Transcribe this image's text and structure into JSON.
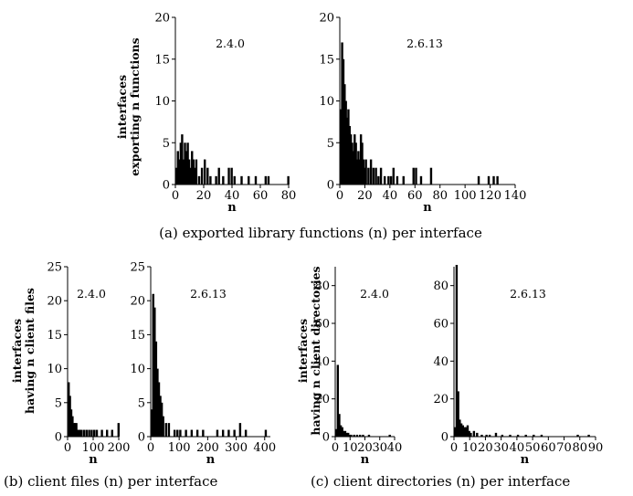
{
  "captions": [
    "(a) exported library functions (n) per interface",
    "(b) client files (n) per interface",
    "(c) client directories (n) per interface"
  ],
  "ylabels": {
    "a": [
      "interfaces",
      "exporting n functions"
    ],
    "b": [
      "interfaces",
      "having n client files"
    ],
    "c": [
      "interfaces",
      "having n client directories"
    ]
  },
  "chart_data": [
    {
      "type": "bar",
      "group": "a",
      "version": "2.4.0",
      "xlabel": "n",
      "xlim": [
        0,
        80
      ],
      "ylim": [
        0,
        20
      ],
      "xticks": [
        "0",
        "20",
        "40",
        "60",
        "80"
      ],
      "yticks": [
        "0",
        "5",
        "10",
        "15",
        "20"
      ],
      "x": [
        0,
        1,
        2,
        3,
        4,
        5,
        6,
        7,
        8,
        9,
        10,
        11,
        12,
        13,
        14,
        16,
        18,
        20,
        22,
        24,
        28,
        30,
        33,
        37,
        39,
        41,
        46,
        51,
        56,
        63,
        65,
        79
      ],
      "values": [
        2,
        4,
        3,
        5,
        6,
        3,
        5,
        4,
        5,
        3,
        2,
        4,
        3,
        2,
        3,
        1,
        2,
        3,
        2,
        1,
        1,
        2,
        1,
        2,
        2,
        1,
        1,
        1,
        1,
        1,
        1,
        1
      ]
    },
    {
      "type": "bar",
      "group": "a",
      "version": "2.6.13",
      "xlabel": "n",
      "xlim": [
        0,
        140
      ],
      "ylim": [
        0,
        20
      ],
      "xticks": [
        "0",
        "20",
        "40",
        "60",
        "80",
        "100",
        "120",
        "140"
      ],
      "yticks": [
        "0",
        "5",
        "10",
        "15",
        "20"
      ],
      "x": [
        0,
        1,
        2,
        3,
        4,
        5,
        6,
        7,
        8,
        9,
        10,
        11,
        12,
        13,
        14,
        15,
        16,
        17,
        18,
        19,
        20,
        22,
        24,
        26,
        28,
        30,
        32,
        35,
        38,
        40,
        42,
        45,
        50,
        58,
        60,
        64,
        72,
        110,
        118,
        122,
        125
      ],
      "values": [
        9,
        17,
        15,
        12,
        10,
        8,
        9,
        7,
        6,
        5,
        4,
        6,
        5,
        3,
        4,
        3,
        6,
        5,
        3,
        2,
        3,
        2,
        3,
        2,
        2,
        1,
        2,
        1,
        1,
        1,
        2,
        1,
        1,
        2,
        2,
        1,
        2,
        1,
        1,
        1,
        1
      ]
    },
    {
      "type": "bar",
      "group": "b",
      "version": "2.4.0",
      "xlabel": "n",
      "xlim": [
        0,
        200
      ],
      "ylim": [
        0,
        25
      ],
      "xticks": [
        "0",
        "100",
        "200"
      ],
      "yticks": [
        "0",
        "5",
        "10",
        "15",
        "20",
        "25"
      ],
      "x": [
        0,
        5,
        10,
        15,
        20,
        25,
        30,
        35,
        40,
        45,
        50,
        60,
        70,
        80,
        90,
        100,
        110,
        130,
        150,
        170,
        195
      ],
      "values": [
        8,
        6,
        4,
        3,
        2,
        2,
        2,
        1,
        1,
        1,
        1,
        1,
        1,
        1,
        1,
        1,
        1,
        1,
        1,
        1,
        2
      ]
    },
    {
      "type": "bar",
      "group": "b",
      "version": "2.6.13",
      "xlabel": "n",
      "xlim": [
        0,
        420
      ],
      "ylim": [
        0,
        25
      ],
      "xticks": [
        "0",
        "100",
        "200",
        "300",
        "400"
      ],
      "yticks": [
        "0",
        "5",
        "10",
        "15",
        "20",
        "25"
      ],
      "x": [
        0,
        5,
        10,
        15,
        20,
        25,
        30,
        35,
        40,
        50,
        60,
        80,
        90,
        100,
        120,
        140,
        160,
        180,
        230,
        250,
        270,
        290,
        310,
        330,
        400
      ],
      "values": [
        4,
        21,
        19,
        14,
        10,
        8,
        6,
        5,
        3,
        2,
        2,
        1,
        1,
        1,
        1,
        1,
        1,
        1,
        1,
        1,
        1,
        1,
        2,
        1,
        1
      ]
    },
    {
      "type": "bar",
      "group": "c",
      "version": "2.4.0",
      "xlabel": "n",
      "xlim": [
        0,
        40
      ],
      "ylim": [
        0,
        90
      ],
      "xticks": [
        "0",
        "10",
        "20",
        "30",
        "40"
      ],
      "yticks": [
        "0",
        "20",
        "40",
        "60",
        "80"
      ],
      "x": [
        0,
        1,
        2,
        3,
        4,
        5,
        6,
        7,
        8,
        9,
        10,
        12,
        14,
        16,
        18,
        22,
        36
      ],
      "values": [
        4,
        38,
        12,
        6,
        5,
        3,
        3,
        2,
        2,
        1,
        1,
        1,
        1,
        1,
        1,
        1,
        1
      ]
    },
    {
      "type": "bar",
      "group": "c",
      "version": "2.6.13",
      "xlabel": "n",
      "xlim": [
        0,
        90
      ],
      "ylim": [
        0,
        90
      ],
      "xticks": [
        "0",
        "10",
        "20",
        "30",
        "40",
        "50",
        "60",
        "70",
        "80",
        "90"
      ],
      "yticks": [
        "0",
        "20",
        "40",
        "60",
        "80"
      ],
      "x": [
        0,
        1,
        2,
        3,
        4,
        5,
        6,
        7,
        8,
        9,
        10,
        12,
        14,
        17,
        20,
        22,
        26,
        30,
        35,
        40,
        45,
        50,
        55,
        78,
        85
      ],
      "values": [
        5,
        92,
        24,
        9,
        7,
        6,
        5,
        5,
        6,
        3,
        2,
        3,
        2,
        1,
        1,
        1,
        2,
        1,
        1,
        1,
        1,
        1,
        1,
        1,
        1
      ]
    }
  ]
}
